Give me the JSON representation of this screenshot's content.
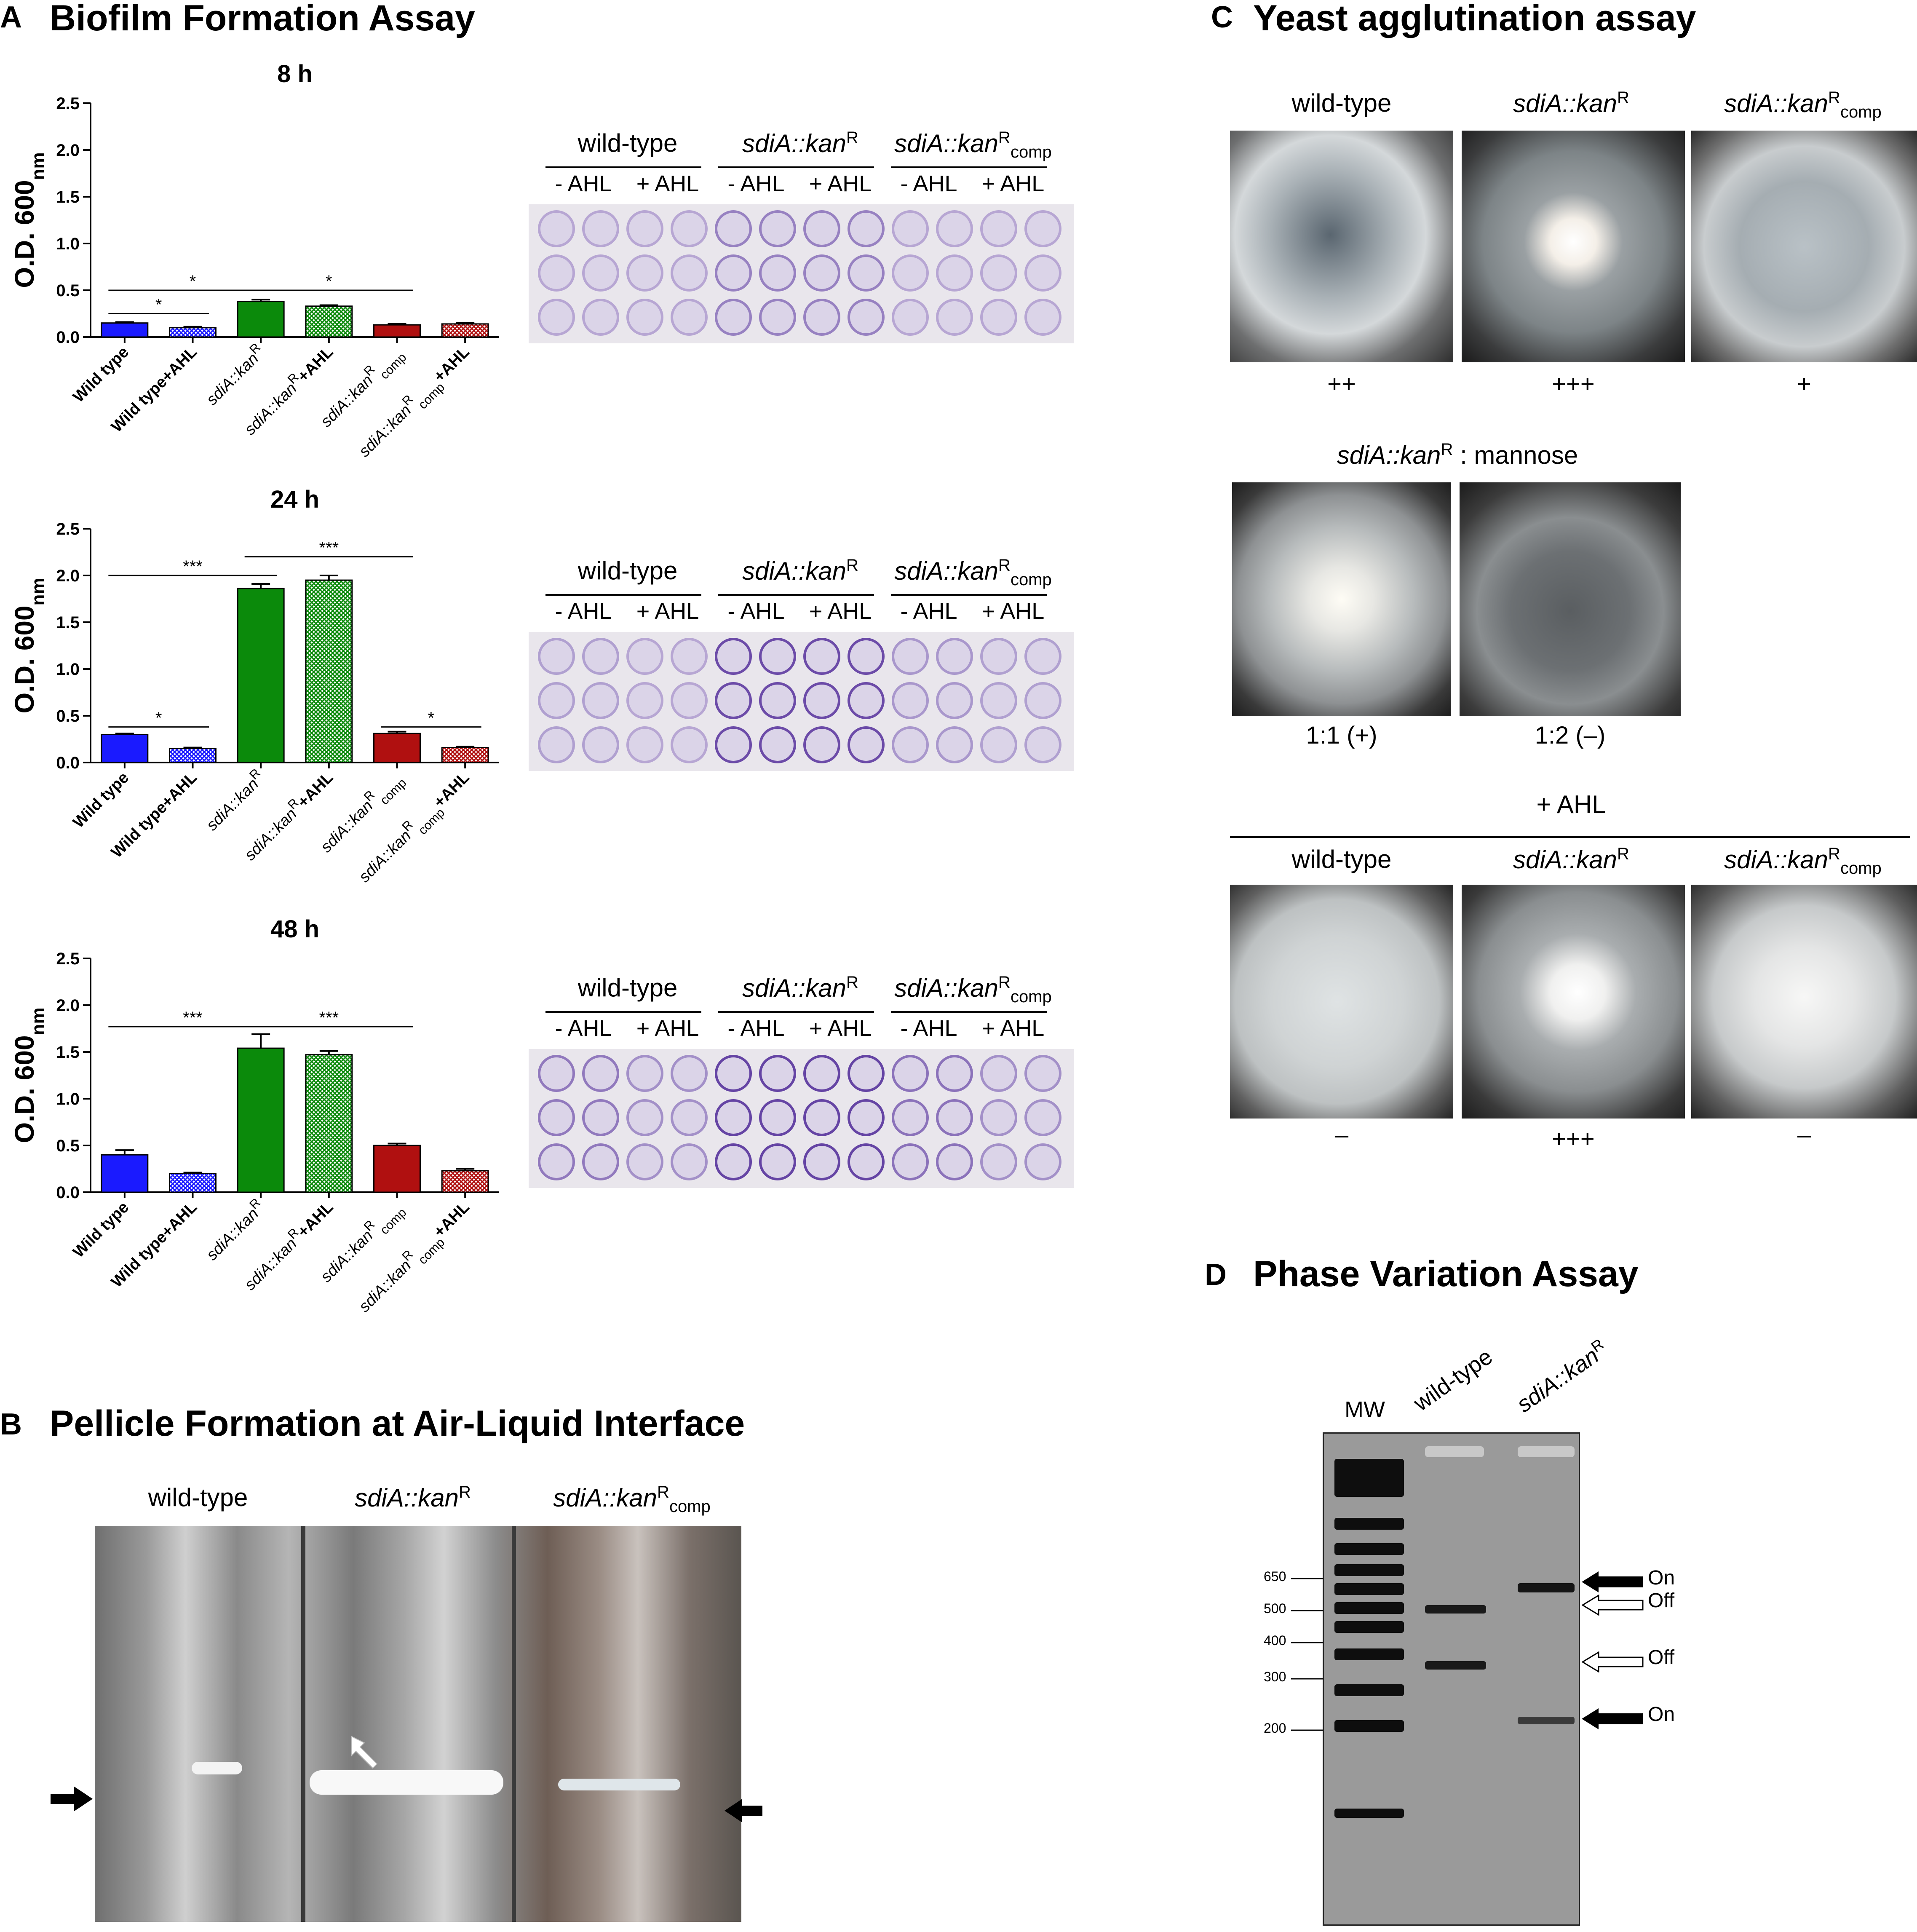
{
  "panelA": {
    "letter": "A",
    "title": "Biofilm Formation Assay",
    "plate_headers": {
      "groups": [
        "wild-type",
        "sdiA::kanR",
        "sdiA::kanRcomp"
      ],
      "minus": "- AHL",
      "plus": "+ AHL"
    }
  },
  "panelB": {
    "letter": "B",
    "title": "Pellicle Formation at Air-Liquid Interface",
    "labels": [
      "wild-type",
      "sdiA::kanR",
      "sdiA::kanRcomp"
    ]
  },
  "panelC": {
    "letter": "C",
    "title": "Yeast agglutination assay",
    "row1_labels": [
      "wild-type",
      "sdiA::kanR",
      "sdiA::kanRcomp"
    ],
    "row1_scores": [
      "++",
      "+++",
      "+"
    ],
    "row2_title": "sdiA::kanR : mannose",
    "row2_scores": [
      "1:1 (+)",
      "1:2 (–)"
    ],
    "row3_header": "+ AHL",
    "row3_labels": [
      "wild-type",
      "sdiA::kanR",
      "sdiA::kanRcomp"
    ],
    "row3_scores": [
      "–",
      "+++",
      "–"
    ]
  },
  "panelD": {
    "letter": "D",
    "title": "Phase Variation Assay",
    "lanes": [
      "MW",
      "wild-type",
      "sdiA::kanR"
    ],
    "markers": [
      "650",
      "500",
      "400",
      "300",
      "200"
    ],
    "band_labels": [
      "On",
      "Off",
      "Off",
      "On"
    ]
  },
  "colors": {
    "wild_type": "#1a1aff",
    "mutant": "#0b8a0b",
    "comp": "#b01010"
  },
  "chart_data": [
    {
      "type": "bar",
      "title": "8 h",
      "ylabel": "O.D. 600nm",
      "ylim": [
        0,
        2.5
      ],
      "yticks": [
        "0.0",
        "0.5",
        "1.0",
        "1.5",
        "2.0",
        "2.5"
      ],
      "categories": [
        "Wild type",
        "Wild type+AHL",
        "sdiA::kanR",
        "sdiA::kanR+AHL",
        "sdiA::kanRcomp",
        "sdiA::kanRcomp+AHL"
      ],
      "values": [
        0.15,
        0.1,
        0.38,
        0.33,
        0.13,
        0.14
      ],
      "errors": [
        0.01,
        0.01,
        0.02,
        0.01,
        0.01,
        0.01
      ],
      "significance": [
        {
          "from": 0,
          "to": 1,
          "label": "*",
          "y": 0.25
        },
        {
          "from": 0,
          "to": 2,
          "label": "*",
          "y": 0.5
        },
        {
          "from": 2,
          "to": 4,
          "label": "*",
          "y": 0.5
        }
      ]
    },
    {
      "type": "bar",
      "title": "24 h",
      "ylabel": "O.D. 600nm",
      "ylim": [
        0,
        2.5
      ],
      "yticks": [
        "0.0",
        "0.5",
        "1.0",
        "1.5",
        "2.0",
        "2.5"
      ],
      "categories": [
        "Wild type",
        "Wild type+AHL",
        "sdiA::kanR",
        "sdiA::kanR+AHL",
        "sdiA::kanRcomp",
        "sdiA::kanRcomp+AHL"
      ],
      "values": [
        0.3,
        0.15,
        1.86,
        1.95,
        0.31,
        0.16
      ],
      "errors": [
        0.01,
        0.01,
        0.05,
        0.05,
        0.02,
        0.01
      ],
      "significance": [
        {
          "from": 0,
          "to": 1,
          "label": "*",
          "y": 0.38
        },
        {
          "from": 0,
          "to": 2,
          "label": "***",
          "y": 2.0
        },
        {
          "from": 2,
          "to": 4,
          "label": "***",
          "y": 2.2
        },
        {
          "from": 4,
          "to": 5,
          "label": "*",
          "y": 0.38
        }
      ]
    },
    {
      "type": "bar",
      "title": "48 h",
      "ylabel": "O.D. 600nm",
      "ylim": [
        0,
        2.5
      ],
      "yticks": [
        "0.0",
        "0.5",
        "1.0",
        "1.5",
        "2.0",
        "2.5"
      ],
      "categories": [
        "Wild type",
        "Wild type+AHL",
        "sdiA::kanR",
        "sdiA::kanR+AHL",
        "sdiA::kanRcomp",
        "sdiA::kanRcomp+AHL"
      ],
      "values": [
        0.4,
        0.2,
        1.54,
        1.47,
        0.5,
        0.23
      ],
      "errors": [
        0.05,
        0.01,
        0.15,
        0.04,
        0.02,
        0.02
      ],
      "significance": [
        {
          "from": 0,
          "to": 2,
          "label": "***",
          "y": 1.77
        },
        {
          "from": 2,
          "to": 4,
          "label": "***",
          "y": 1.77
        }
      ]
    }
  ]
}
